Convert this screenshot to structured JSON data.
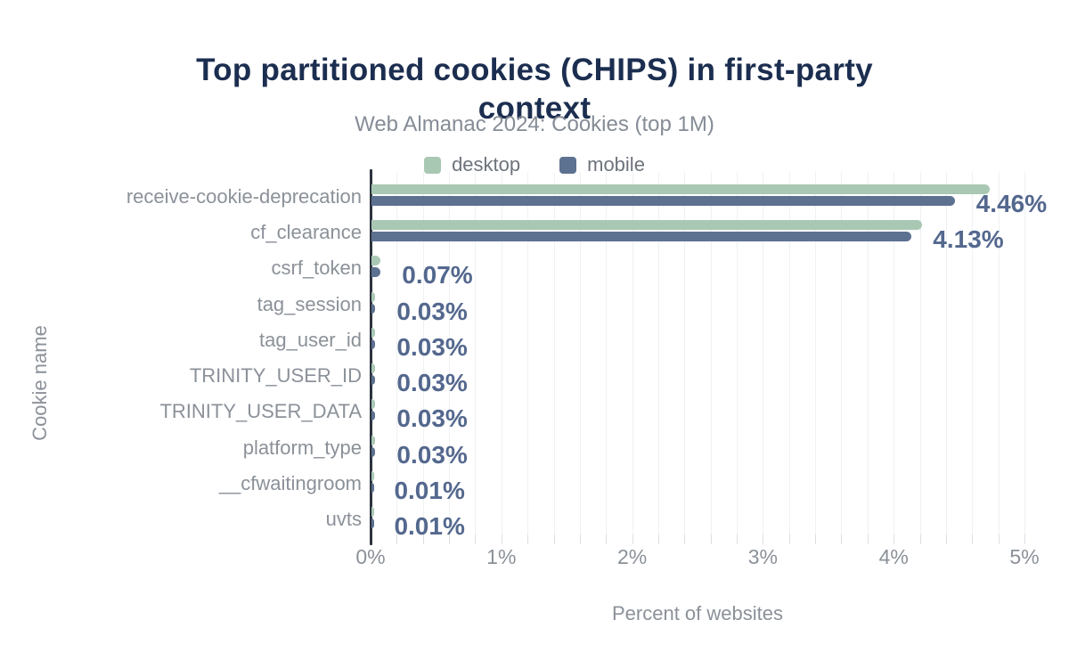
{
  "title": "Top partitioned cookies (CHIPS) in first-party context",
  "title_lines": [
    "Top partitioned cookies (CHIPS) in first-party",
    "context"
  ],
  "subtitle": "Web Almanac 2024: Cookies (top 1M)",
  "legend": [
    {
      "label": "desktop",
      "color": "#a9c8b4"
    },
    {
      "label": "mobile",
      "color": "#5d7191"
    }
  ],
  "colors": {
    "title": "#1c2e50",
    "subtitle": "#858c96",
    "axis_labels": "#8b9199",
    "value_labels": "#54688e",
    "desktop_bar": "#a9c8b4",
    "mobile_bar": "#5d7191",
    "axis_line": "#2d333e",
    "gridline": "#eff1f3"
  },
  "chart_data": {
    "type": "bar",
    "orientation": "horizontal",
    "title": "Top partitioned cookies (CHIPS) in first-party context",
    "subtitle": "Web Almanac 2024: Cookies (top 1M)",
    "xlabel": "Percent of websites",
    "ylabel": "Cookie name",
    "xlim": [
      0,
      5
    ],
    "x_ticks": [
      "0%",
      "1%",
      "2%",
      "3%",
      "4%",
      "5%"
    ],
    "x_tick_values": [
      0,
      1,
      2,
      3,
      4,
      5
    ],
    "minor_grid_step_pct": 0.2,
    "grid": "vertical minor gridlines every 0.2%",
    "legend_position": "top-center",
    "categories": [
      "receive-cookie-deprecation",
      "cf_clearance",
      "csrf_token",
      "tag_session",
      "tag_user_id",
      "TRINITY_USER_ID",
      "TRINITY_USER_DATA",
      "platform_type",
      "__cfwaitingroom",
      "uvts"
    ],
    "series": [
      {
        "name": "desktop",
        "color": "#a9c8b4",
        "values": [
          4.73,
          4.21,
          0.07,
          0.03,
          0.03,
          0.03,
          0.03,
          0.03,
          0.01,
          0.01
        ]
      },
      {
        "name": "mobile",
        "color": "#5d7191",
        "values": [
          4.46,
          4.13,
          0.07,
          0.03,
          0.03,
          0.03,
          0.03,
          0.03,
          0.01,
          0.01
        ]
      }
    ],
    "data_labels": [
      "4.46%",
      "4.13%",
      "0.07%",
      "0.03%",
      "0.03%",
      "0.03%",
      "0.03%",
      "0.03%",
      "0.01%",
      "0.01%"
    ],
    "data_labels_series": "mobile"
  }
}
